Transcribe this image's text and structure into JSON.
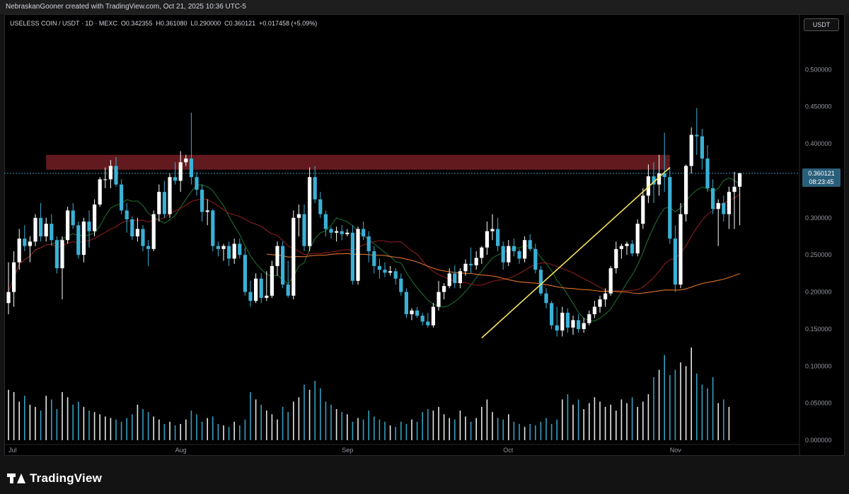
{
  "header": {
    "attribution": "NebraskanGooner created with TradingView.com, Oct 21, 2025 10:36 UTC-5"
  },
  "legend": {
    "symbol": "USELESS COIN / USDT · 1D · MEXC",
    "o_key": "O",
    "o_val": "0.342355",
    "h_key": "H",
    "h_val": "0.361080",
    "l_key": "L",
    "l_val": "0.290000",
    "c_key": "C",
    "c_val": "0.360121",
    "change": "+0.017458 (+5.09%)"
  },
  "currency_button": "USDT",
  "price_tag": {
    "price": "0.360121",
    "countdown": "08:23:45"
  },
  "brand": "TradingView",
  "colors": {
    "background": "#000000",
    "candle_up": "#ffffff",
    "candle_down": "#3ab1d6",
    "resistance_zone": "#6b1c22",
    "trendline": "#f5e35c",
    "ma_short": "#1d6b2c",
    "ma_mid": "#8a1c1c",
    "ma_long": "#e0702a"
  },
  "chart_data": {
    "type": "candlestick",
    "title": "USELESS COIN / USDT · 1D · MEXC",
    "y_ticks": [
      "0.500000",
      "0.450000",
      "0.400000",
      "0.350000",
      "0.300000",
      "0.250000",
      "0.200000",
      "0.150000",
      "0.100000",
      "0.050000",
      "0.000000"
    ],
    "y_tick_values": [
      0.5,
      0.45,
      0.4,
      0.35,
      0.3,
      0.25,
      0.2,
      0.15,
      0.1,
      0.05,
      0.0
    ],
    "x_ticks": [
      "Jul",
      "Aug",
      "Sep",
      "Oct",
      "Nov"
    ],
    "x_tick_dates": [
      "2025-07-01",
      "2025-08-01",
      "2025-09-01",
      "2025-10-01",
      "2025-11-01"
    ],
    "start_date": "2025-07-01",
    "last_price": 0.360121,
    "resistance_zone": {
      "low": 0.365,
      "high": 0.385,
      "start": "2025-07-08",
      "end": "2025-11-01"
    },
    "trendline": [
      {
        "date": "2025-09-27",
        "value": 0.138
      },
      {
        "date": "2025-11-01",
        "value": 0.368
      }
    ],
    "candles": [
      {
        "o": 0.185,
        "h": 0.24,
        "l": 0.17,
        "c": 0.2
      },
      {
        "o": 0.2,
        "h": 0.255,
        "l": 0.18,
        "c": 0.24
      },
      {
        "o": 0.24,
        "h": 0.285,
        "l": 0.23,
        "c": 0.272
      },
      {
        "o": 0.272,
        "h": 0.29,
        "l": 0.255,
        "c": 0.262
      },
      {
        "o": 0.262,
        "h": 0.275,
        "l": 0.24,
        "c": 0.268
      },
      {
        "o": 0.268,
        "h": 0.305,
        "l": 0.262,
        "c": 0.3
      },
      {
        "o": 0.3,
        "h": 0.32,
        "l": 0.268,
        "c": 0.275
      },
      {
        "o": 0.275,
        "h": 0.3,
        "l": 0.268,
        "c": 0.292
      },
      {
        "o": 0.292,
        "h": 0.305,
        "l": 0.262,
        "c": 0.27
      },
      {
        "o": 0.27,
        "h": 0.275,
        "l": 0.225,
        "c": 0.232
      },
      {
        "o": 0.232,
        "h": 0.275,
        "l": 0.19,
        "c": 0.27
      },
      {
        "o": 0.27,
        "h": 0.315,
        "l": 0.265,
        "c": 0.31
      },
      {
        "o": 0.31,
        "h": 0.32,
        "l": 0.285,
        "c": 0.29
      },
      {
        "o": 0.29,
        "h": 0.295,
        "l": 0.245,
        "c": 0.25
      },
      {
        "o": 0.25,
        "h": 0.3,
        "l": 0.24,
        "c": 0.295
      },
      {
        "o": 0.295,
        "h": 0.31,
        "l": 0.26,
        "c": 0.282
      },
      {
        "o": 0.282,
        "h": 0.325,
        "l": 0.275,
        "c": 0.318
      },
      {
        "o": 0.318,
        "h": 0.355,
        "l": 0.315,
        "c": 0.352
      },
      {
        "o": 0.352,
        "h": 0.368,
        "l": 0.34,
        "c": 0.352
      },
      {
        "o": 0.352,
        "h": 0.378,
        "l": 0.34,
        "c": 0.37
      },
      {
        "o": 0.37,
        "h": 0.382,
        "l": 0.342,
        "c": 0.345
      },
      {
        "o": 0.345,
        "h": 0.352,
        "l": 0.305,
        "c": 0.31
      },
      {
        "o": 0.31,
        "h": 0.32,
        "l": 0.28,
        "c": 0.298
      },
      {
        "o": 0.298,
        "h": 0.302,
        "l": 0.27,
        "c": 0.275
      },
      {
        "o": 0.275,
        "h": 0.3,
        "l": 0.268,
        "c": 0.285
      },
      {
        "o": 0.285,
        "h": 0.29,
        "l": 0.255,
        "c": 0.262
      },
      {
        "o": 0.262,
        "h": 0.27,
        "l": 0.235,
        "c": 0.258
      },
      {
        "o": 0.258,
        "h": 0.31,
        "l": 0.255,
        "c": 0.305
      },
      {
        "o": 0.305,
        "h": 0.345,
        "l": 0.295,
        "c": 0.335
      },
      {
        "o": 0.335,
        "h": 0.35,
        "l": 0.3,
        "c": 0.305
      },
      {
        "o": 0.305,
        "h": 0.36,
        "l": 0.3,
        "c": 0.355
      },
      {
        "o": 0.355,
        "h": 0.375,
        "l": 0.345,
        "c": 0.35
      },
      {
        "o": 0.35,
        "h": 0.39,
        "l": 0.335,
        "c": 0.375
      },
      {
        "o": 0.375,
        "h": 0.385,
        "l": 0.37,
        "c": 0.38
      },
      {
        "o": 0.38,
        "h": 0.442,
        "l": 0.345,
        "c": 0.355
      },
      {
        "o": 0.355,
        "h": 0.362,
        "l": 0.33,
        "c": 0.338
      },
      {
        "o": 0.338,
        "h": 0.345,
        "l": 0.295,
        "c": 0.308
      },
      {
        "o": 0.308,
        "h": 0.325,
        "l": 0.29,
        "c": 0.31
      },
      {
        "o": 0.31,
        "h": 0.312,
        "l": 0.255,
        "c": 0.262
      },
      {
        "o": 0.262,
        "h": 0.268,
        "l": 0.248,
        "c": 0.258
      },
      {
        "o": 0.258,
        "h": 0.265,
        "l": 0.242,
        "c": 0.262
      },
      {
        "o": 0.262,
        "h": 0.268,
        "l": 0.235,
        "c": 0.245
      },
      {
        "o": 0.245,
        "h": 0.272,
        "l": 0.238,
        "c": 0.265
      },
      {
        "o": 0.265,
        "h": 0.272,
        "l": 0.245,
        "c": 0.25
      },
      {
        "o": 0.25,
        "h": 0.26,
        "l": 0.195,
        "c": 0.2
      },
      {
        "o": 0.2,
        "h": 0.215,
        "l": 0.18,
        "c": 0.188
      },
      {
        "o": 0.188,
        "h": 0.225,
        "l": 0.185,
        "c": 0.218
      },
      {
        "o": 0.218,
        "h": 0.225,
        "l": 0.185,
        "c": 0.192
      },
      {
        "o": 0.192,
        "h": 0.228,
        "l": 0.188,
        "c": 0.195
      },
      {
        "o": 0.195,
        "h": 0.242,
        "l": 0.192,
        "c": 0.235
      },
      {
        "o": 0.235,
        "h": 0.268,
        "l": 0.222,
        "c": 0.262
      },
      {
        "o": 0.262,
        "h": 0.268,
        "l": 0.205,
        "c": 0.21
      },
      {
        "o": 0.21,
        "h": 0.242,
        "l": 0.192,
        "c": 0.195
      },
      {
        "o": 0.195,
        "h": 0.31,
        "l": 0.19,
        "c": 0.3
      },
      {
        "o": 0.3,
        "h": 0.318,
        "l": 0.275,
        "c": 0.305
      },
      {
        "o": 0.305,
        "h": 0.318,
        "l": 0.255,
        "c": 0.262
      },
      {
        "o": 0.262,
        "h": 0.368,
        "l": 0.255,
        "c": 0.355
      },
      {
        "o": 0.355,
        "h": 0.37,
        "l": 0.32,
        "c": 0.325
      },
      {
        "o": 0.325,
        "h": 0.335,
        "l": 0.3,
        "c": 0.305
      },
      {
        "o": 0.305,
        "h": 0.31,
        "l": 0.275,
        "c": 0.285
      },
      {
        "o": 0.285,
        "h": 0.288,
        "l": 0.272,
        "c": 0.28
      },
      {
        "o": 0.28,
        "h": 0.288,
        "l": 0.268,
        "c": 0.282
      },
      {
        "o": 0.282,
        "h": 0.29,
        "l": 0.27,
        "c": 0.278
      },
      {
        "o": 0.278,
        "h": 0.285,
        "l": 0.275,
        "c": 0.28
      },
      {
        "o": 0.28,
        "h": 0.29,
        "l": 0.21,
        "c": 0.215
      },
      {
        "o": 0.215,
        "h": 0.288,
        "l": 0.21,
        "c": 0.285
      },
      {
        "o": 0.285,
        "h": 0.295,
        "l": 0.27,
        "c": 0.275
      },
      {
        "o": 0.275,
        "h": 0.282,
        "l": 0.24,
        "c": 0.255
      },
      {
        "o": 0.255,
        "h": 0.262,
        "l": 0.225,
        "c": 0.235
      },
      {
        "o": 0.235,
        "h": 0.245,
        "l": 0.218,
        "c": 0.23
      },
      {
        "o": 0.23,
        "h": 0.24,
        "l": 0.22,
        "c": 0.226
      },
      {
        "o": 0.226,
        "h": 0.235,
        "l": 0.222,
        "c": 0.228
      },
      {
        "o": 0.228,
        "h": 0.232,
        "l": 0.21,
        "c": 0.218
      },
      {
        "o": 0.218,
        "h": 0.225,
        "l": 0.195,
        "c": 0.2
      },
      {
        "o": 0.2,
        "h": 0.205,
        "l": 0.165,
        "c": 0.17
      },
      {
        "o": 0.17,
        "h": 0.178,
        "l": 0.162,
        "c": 0.175
      },
      {
        "o": 0.175,
        "h": 0.18,
        "l": 0.165,
        "c": 0.168
      },
      {
        "o": 0.168,
        "h": 0.172,
        "l": 0.155,
        "c": 0.16
      },
      {
        "o": 0.16,
        "h": 0.172,
        "l": 0.152,
        "c": 0.155
      },
      {
        "o": 0.155,
        "h": 0.185,
        "l": 0.152,
        "c": 0.18
      },
      {
        "o": 0.18,
        "h": 0.215,
        "l": 0.175,
        "c": 0.2
      },
      {
        "o": 0.2,
        "h": 0.212,
        "l": 0.19,
        "c": 0.208
      },
      {
        "o": 0.208,
        "h": 0.232,
        "l": 0.205,
        "c": 0.225
      },
      {
        "o": 0.225,
        "h": 0.236,
        "l": 0.205,
        "c": 0.212
      },
      {
        "o": 0.212,
        "h": 0.232,
        "l": 0.205,
        "c": 0.228
      },
      {
        "o": 0.228,
        "h": 0.244,
        "l": 0.222,
        "c": 0.238
      },
      {
        "o": 0.238,
        "h": 0.26,
        "l": 0.225,
        "c": 0.236
      },
      {
        "o": 0.236,
        "h": 0.255,
        "l": 0.23,
        "c": 0.246
      },
      {
        "o": 0.246,
        "h": 0.262,
        "l": 0.238,
        "c": 0.26
      },
      {
        "o": 0.26,
        "h": 0.295,
        "l": 0.25,
        "c": 0.282
      },
      {
        "o": 0.282,
        "h": 0.305,
        "l": 0.27,
        "c": 0.285
      },
      {
        "o": 0.285,
        "h": 0.3,
        "l": 0.255,
        "c": 0.262
      },
      {
        "o": 0.262,
        "h": 0.268,
        "l": 0.23,
        "c": 0.24
      },
      {
        "o": 0.24,
        "h": 0.27,
        "l": 0.235,
        "c": 0.262
      },
      {
        "o": 0.262,
        "h": 0.272,
        "l": 0.248,
        "c": 0.255
      },
      {
        "o": 0.255,
        "h": 0.258,
        "l": 0.238,
        "c": 0.245
      },
      {
        "o": 0.245,
        "h": 0.275,
        "l": 0.24,
        "c": 0.27
      },
      {
        "o": 0.27,
        "h": 0.278,
        "l": 0.255,
        "c": 0.258
      },
      {
        "o": 0.258,
        "h": 0.265,
        "l": 0.225,
        "c": 0.23
      },
      {
        "o": 0.23,
        "h": 0.235,
        "l": 0.195,
        "c": 0.198
      },
      {
        "o": 0.198,
        "h": 0.205,
        "l": 0.178,
        "c": 0.185
      },
      {
        "o": 0.185,
        "h": 0.188,
        "l": 0.15,
        "c": 0.155
      },
      {
        "o": 0.155,
        "h": 0.18,
        "l": 0.14,
        "c": 0.148
      },
      {
        "o": 0.148,
        "h": 0.18,
        "l": 0.14,
        "c": 0.172
      },
      {
        "o": 0.172,
        "h": 0.178,
        "l": 0.145,
        "c": 0.152
      },
      {
        "o": 0.152,
        "h": 0.168,
        "l": 0.142,
        "c": 0.162
      },
      {
        "o": 0.162,
        "h": 0.17,
        "l": 0.145,
        "c": 0.15
      },
      {
        "o": 0.15,
        "h": 0.165,
        "l": 0.145,
        "c": 0.158
      },
      {
        "o": 0.158,
        "h": 0.175,
        "l": 0.155,
        "c": 0.17
      },
      {
        "o": 0.17,
        "h": 0.188,
        "l": 0.165,
        "c": 0.18
      },
      {
        "o": 0.18,
        "h": 0.195,
        "l": 0.172,
        "c": 0.19
      },
      {
        "o": 0.19,
        "h": 0.205,
        "l": 0.18,
        "c": 0.198
      },
      {
        "o": 0.198,
        "h": 0.235,
        "l": 0.195,
        "c": 0.232
      },
      {
        "o": 0.232,
        "h": 0.268,
        "l": 0.225,
        "c": 0.258
      },
      {
        "o": 0.258,
        "h": 0.265,
        "l": 0.245,
        "c": 0.262
      },
      {
        "o": 0.262,
        "h": 0.268,
        "l": 0.25,
        "c": 0.265
      },
      {
        "o": 0.265,
        "h": 0.27,
        "l": 0.248,
        "c": 0.252
      },
      {
        "o": 0.252,
        "h": 0.298,
        "l": 0.248,
        "c": 0.292
      },
      {
        "o": 0.292,
        "h": 0.34,
        "l": 0.285,
        "c": 0.33
      },
      {
        "o": 0.33,
        "h": 0.372,
        "l": 0.32,
        "c": 0.356
      },
      {
        "o": 0.356,
        "h": 0.375,
        "l": 0.32,
        "c": 0.345
      },
      {
        "o": 0.345,
        "h": 0.385,
        "l": 0.33,
        "c": 0.36
      },
      {
        "o": 0.36,
        "h": 0.415,
        "l": 0.335,
        "c": 0.355
      },
      {
        "o": 0.355,
        "h": 0.368,
        "l": 0.265,
        "c": 0.272
      },
      {
        "o": 0.272,
        "h": 0.29,
        "l": 0.2,
        "c": 0.21
      },
      {
        "o": 0.21,
        "h": 0.32,
        "l": 0.205,
        "c": 0.305
      },
      {
        "o": 0.305,
        "h": 0.372,
        "l": 0.295,
        "c": 0.37
      },
      {
        "o": 0.37,
        "h": 0.422,
        "l": 0.36,
        "c": 0.412
      },
      {
        "o": 0.412,
        "h": 0.448,
        "l": 0.385,
        "c": 0.41
      },
      {
        "o": 0.41,
        "h": 0.42,
        "l": 0.365,
        "c": 0.38
      },
      {
        "o": 0.38,
        "h": 0.398,
        "l": 0.335,
        "c": 0.34
      },
      {
        "o": 0.34,
        "h": 0.352,
        "l": 0.305,
        "c": 0.312
      },
      {
        "o": 0.312,
        "h": 0.325,
        "l": 0.262,
        "c": 0.32
      },
      {
        "o": 0.32,
        "h": 0.33,
        "l": 0.295,
        "c": 0.305
      },
      {
        "o": 0.305,
        "h": 0.342,
        "l": 0.285,
        "c": 0.335
      },
      {
        "o": 0.335,
        "h": 0.362,
        "l": 0.285,
        "c": 0.342
      },
      {
        "o": 0.342,
        "h": 0.361,
        "l": 0.29,
        "c": 0.36
      }
    ],
    "volume": [
      0.068,
      0.065,
      0.052,
      0.06,
      0.048,
      0.045,
      0.04,
      0.06,
      0.055,
      0.042,
      0.065,
      0.058,
      0.048,
      0.052,
      0.045,
      0.04,
      0.038,
      0.035,
      0.032,
      0.03,
      0.028,
      0.025,
      0.03,
      0.035,
      0.048,
      0.042,
      0.038,
      0.032,
      0.028,
      0.022,
      0.025,
      0.02,
      0.022,
      0.028,
      0.04,
      0.035,
      0.025,
      0.03,
      0.032,
      0.022,
      0.02,
      0.018,
      0.025,
      0.02,
      0.028,
      0.065,
      0.055,
      0.048,
      0.04,
      0.035,
      0.028,
      0.045,
      0.038,
      0.052,
      0.058,
      0.075,
      0.068,
      0.08,
      0.07,
      0.052,
      0.048,
      0.042,
      0.038,
      0.035,
      0.025,
      0.03,
      0.028,
      0.04,
      0.032,
      0.028,
      0.025,
      0.02,
      0.018,
      0.025,
      0.022,
      0.028,
      0.025,
      0.038,
      0.042,
      0.04,
      0.045,
      0.035,
      0.03,
      0.028,
      0.04,
      0.032,
      0.025,
      0.03,
      0.045,
      0.055,
      0.038,
      0.03,
      0.028,
      0.035,
      0.025,
      0.022,
      0.018,
      0.022,
      0.02,
      0.025,
      0.03,
      0.022,
      0.028,
      0.055,
      0.062,
      0.048,
      0.055,
      0.042,
      0.05,
      0.058,
      0.052,
      0.045,
      0.048,
      0.04,
      0.055,
      0.05,
      0.058,
      0.045,
      0.052,
      0.062,
      0.085,
      0.095,
      0.115,
      0.088,
      0.095,
      0.105,
      0.1,
      0.125,
      0.09,
      0.075,
      0.07,
      0.085,
      0.05,
      0.055,
      0.045
    ]
  }
}
